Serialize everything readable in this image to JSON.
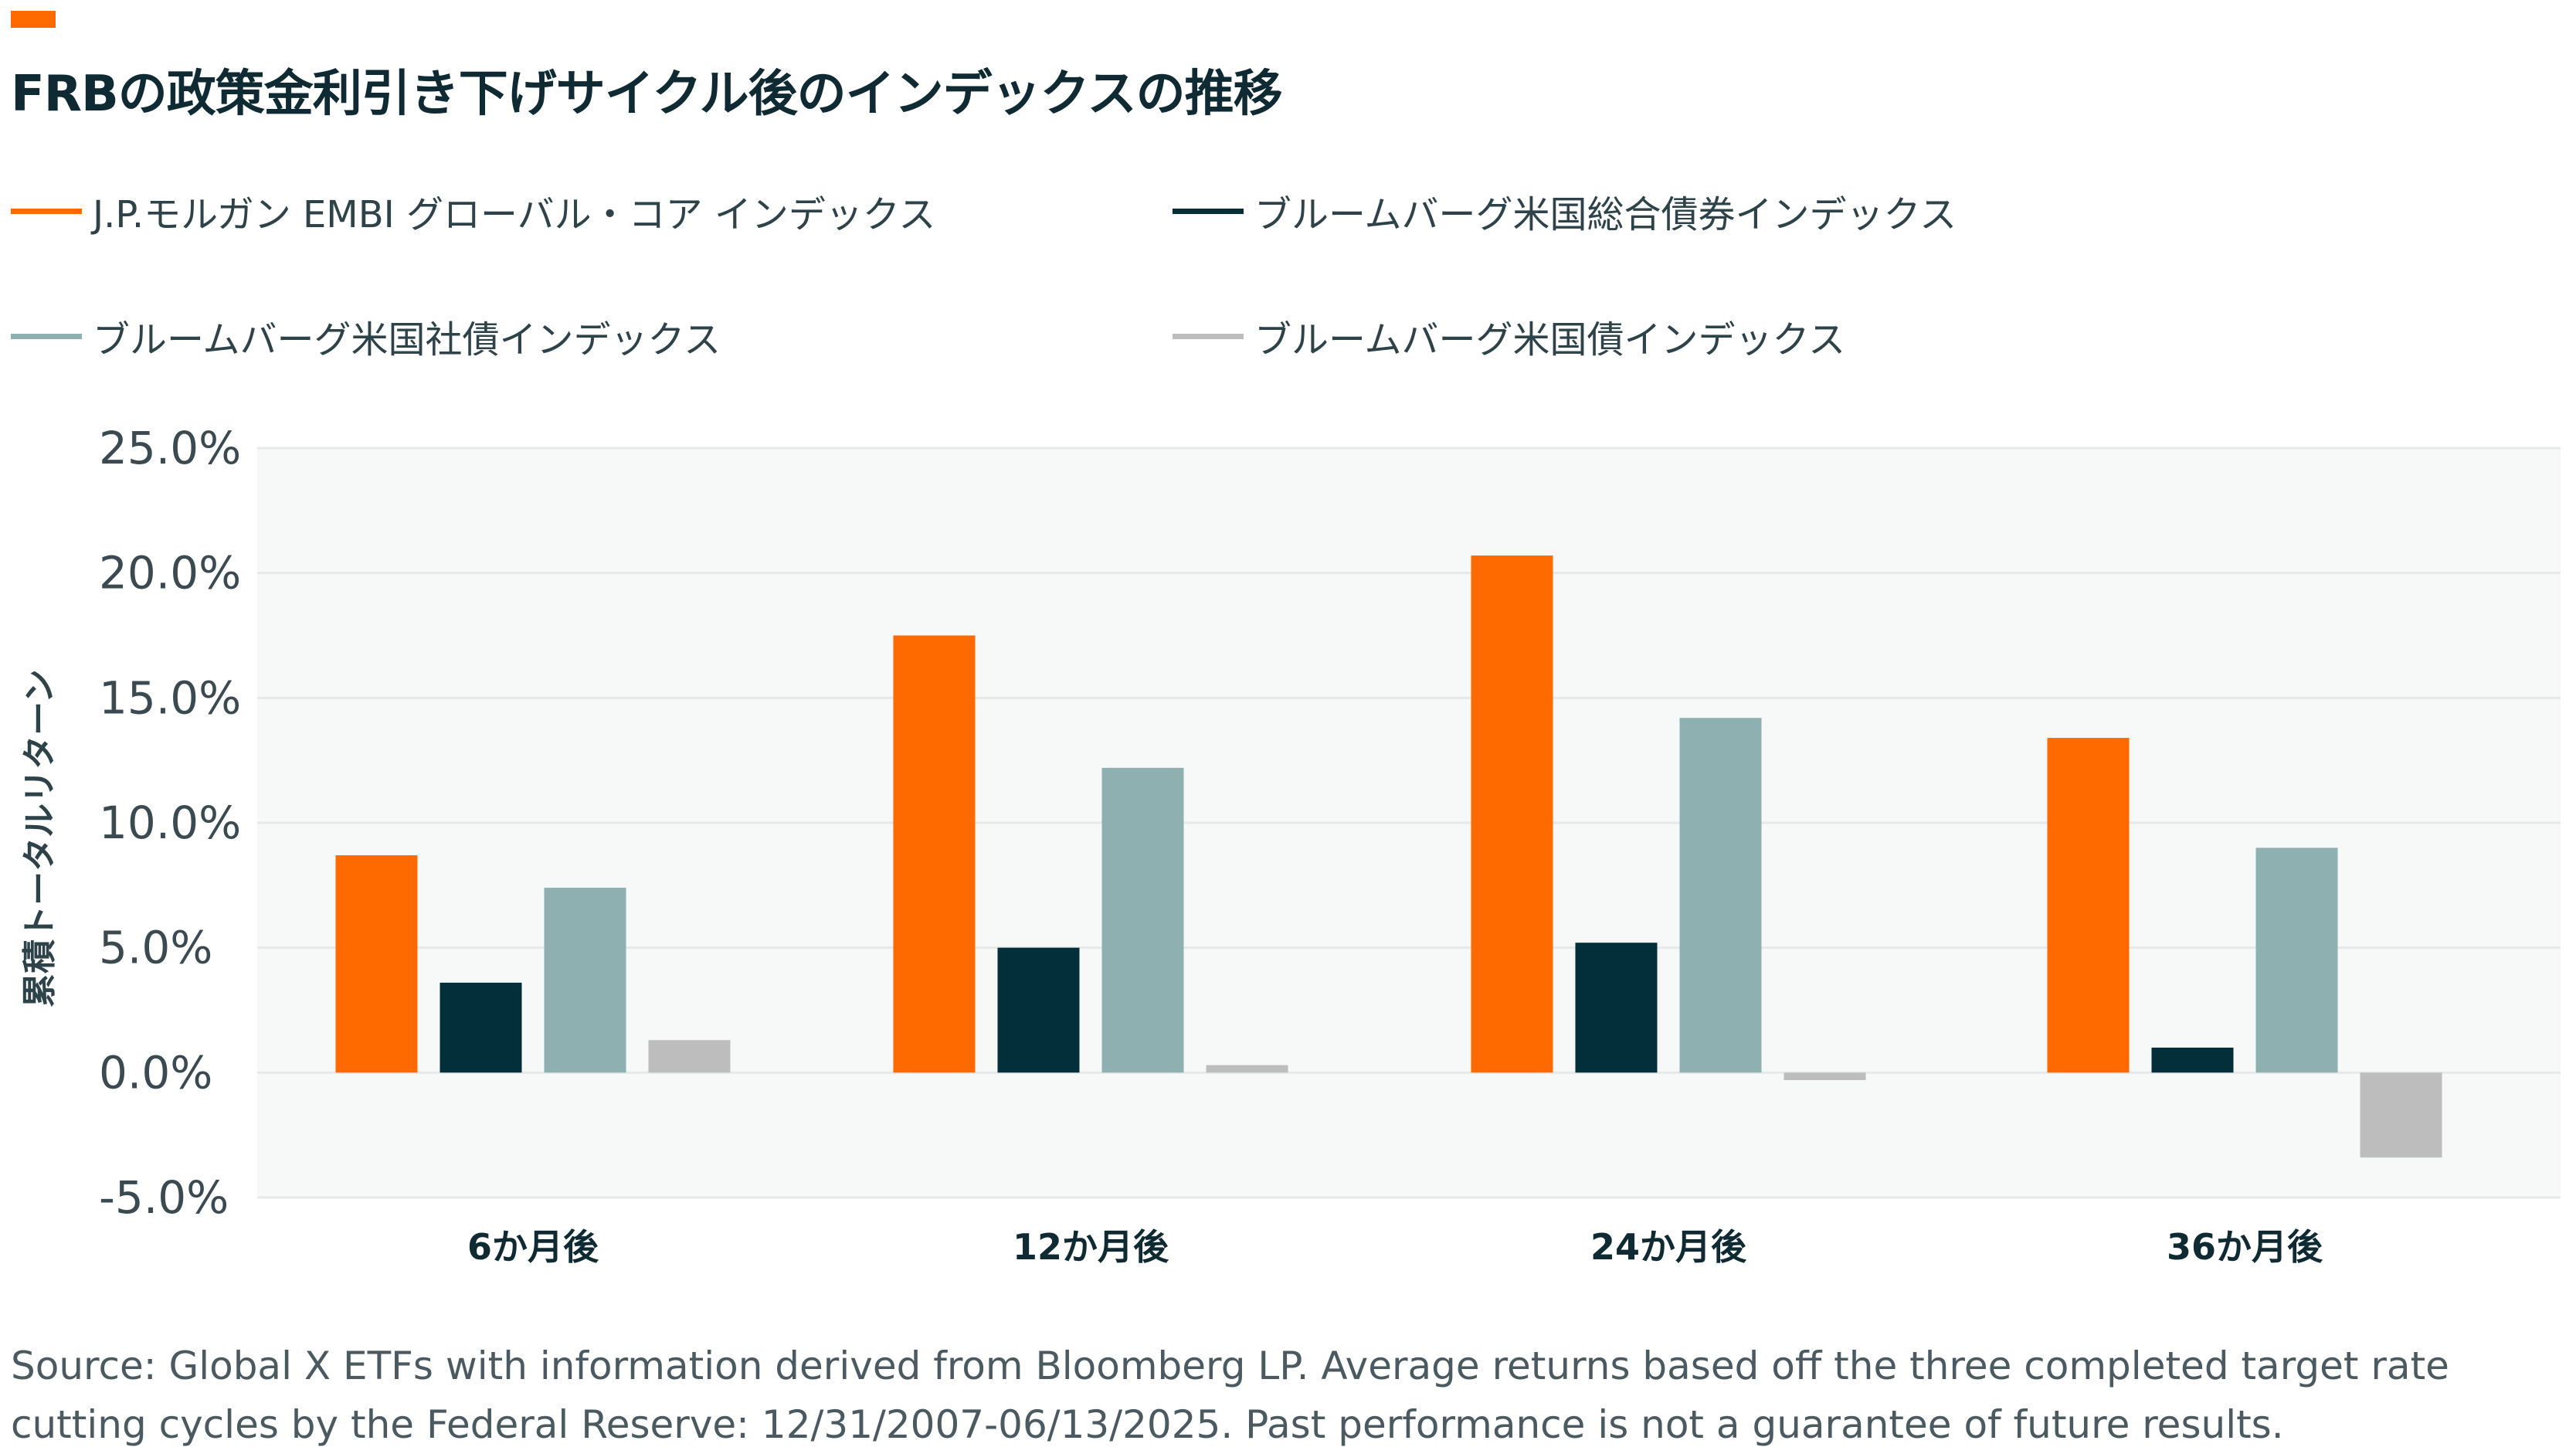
{
  "colors": {
    "accent": "#ff6a00",
    "title": "#0f2a33",
    "plot_background": "#f7f8f8",
    "grid": "#e6e9ea"
  },
  "title": "FRBの政策金利引き下げサイクル後のインデックスの推移",
  "legend": [
    {
      "label": "J.P.モルガン EMBI グローバル・コア インデックス",
      "color": "#ff6a00"
    },
    {
      "label": "ブルームバーグ米国総合債券インデックス",
      "color": "#022f3a"
    },
    {
      "label": "ブルームバーグ米国社債インデックス",
      "color": "#8fb0b0"
    },
    {
      "label": "ブルームバーグ米国債インデックス",
      "color": "#bdbdbd"
    }
  ],
  "chart_data": {
    "type": "bar",
    "title": "",
    "xlabel": "",
    "ylabel": "累積トータルリターン",
    "ylim": [
      -5.0,
      25.0
    ],
    "yticks": [
      "25.0%",
      "20.0%",
      "15.0%",
      "10.0%",
      "5.0%",
      "0.0%",
      "-5.0%"
    ],
    "ytick_values": [
      25,
      20,
      15,
      10,
      5,
      0,
      -5
    ],
    "grid": true,
    "legend_position": "top",
    "categories": [
      "6か月後",
      "12か月後",
      "24か月後",
      "36か月後"
    ],
    "series": [
      {
        "name": "J.P.モルガン EMBI グローバル・コア インデックス",
        "color": "#ff6a00",
        "values": [
          8.7,
          17.5,
          20.7,
          13.4
        ]
      },
      {
        "name": "ブルームバーグ米国総合債券インデックス",
        "color": "#022f3a",
        "values": [
          3.6,
          5.0,
          5.2,
          1.0
        ]
      },
      {
        "name": "ブルームバーグ米国社債インデックス",
        "color": "#8fb0b0",
        "values": [
          7.4,
          12.2,
          14.2,
          9.0
        ]
      },
      {
        "name": "ブルームバーグ米国債インデックス",
        "color": "#bdbdbd",
        "values": [
          1.3,
          0.3,
          -0.3,
          -3.4
        ]
      }
    ]
  },
  "source": "Source: Global X ETFs with information derived from Bloomberg LP. Average returns based off the three completed target rate cutting cycles by the Federal Reserve: 12/31/2007-06/13/2025. Past performance is not a guarantee of future results."
}
